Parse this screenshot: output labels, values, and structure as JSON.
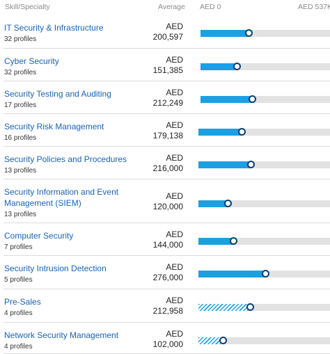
{
  "header": {
    "skill_label": "Skill/Specialty",
    "average_label": "Average",
    "range_min": "AED 0",
    "range_max": "AED 537K"
  },
  "colors": {
    "link": "#1a62b3",
    "bar_fill": "#1ba0e2",
    "bar_track": "#e2e2e2",
    "marker_border": "#0c3f72"
  },
  "rows": [
    {
      "name": "IT Security & Infrastructure",
      "profiles": "32 profiles",
      "currency": "AED",
      "average": "200,597",
      "fraction": 0.3735,
      "hatched": false
    },
    {
      "name": "Cyber Security",
      "profiles": "32 profiles",
      "currency": "AED",
      "average": "151,385",
      "fraction": 0.2818,
      "hatched": false
    },
    {
      "name": "Security Testing and Auditing",
      "profiles": "17 profiles",
      "currency": "AED",
      "average": "212,249",
      "fraction": 0.3952,
      "hatched": false
    },
    {
      "name": "Security Risk Management",
      "profiles": "16 profiles",
      "currency": "AED",
      "average": "179,138",
      "fraction": 0.3335,
      "hatched": false
    },
    {
      "name": "Security Policies and Procedures",
      "profiles": "13 profiles",
      "currency": "AED",
      "average": "216,000",
      "fraction": 0.4022,
      "hatched": false
    },
    {
      "name": "Security Information and Event Management (SIEM)",
      "profiles": "13 profiles",
      "currency": "AED",
      "average": "120,000",
      "fraction": 0.2234,
      "hatched": false
    },
    {
      "name": "Computer Security",
      "profiles": "7 profiles",
      "currency": "AED",
      "average": "144,000",
      "fraction": 0.2681,
      "hatched": false
    },
    {
      "name": "Security Intrusion Detection",
      "profiles": "5 profiles",
      "currency": "AED",
      "average": "276,000",
      "fraction": 0.5139,
      "hatched": false
    },
    {
      "name": "Pre-Sales",
      "profiles": "4 profiles",
      "currency": "AED",
      "average": "212,958",
      "fraction": 0.3965,
      "hatched": true
    },
    {
      "name": "Network Security Management",
      "profiles": "4 profiles",
      "currency": "AED",
      "average": "102,000",
      "fraction": 0.1899,
      "hatched": true
    }
  ]
}
